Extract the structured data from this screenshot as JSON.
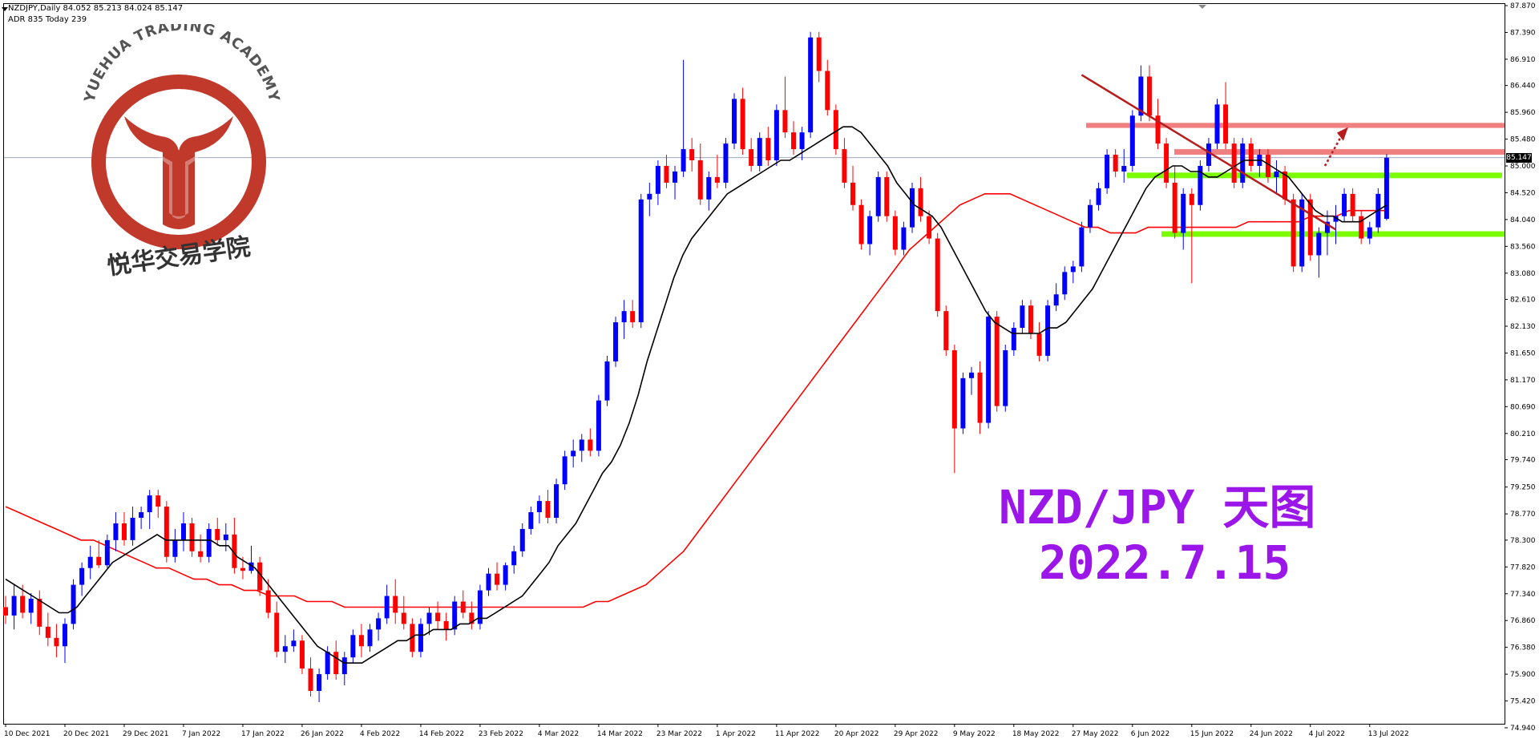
{
  "header": {
    "symbol_line": "NZDJPY,Daily  84.052 85.213 84.024 85.147",
    "info_line": "ADR 835  Today 239"
  },
  "logo": {
    "top_text": "YUEHUA TRADING ACADEMY",
    "chinese_text": "悦华交易学院",
    "color": "#c0392b"
  },
  "overlay_title": "NZD/JPY 天图",
  "overlay_date": "2022.7.15",
  "current_price_label": "85.147",
  "colors": {
    "bull_candle": "#0000ff",
    "bear_candle": "#ff0000",
    "ma_fast": "#000000",
    "ma_slow": "#ff0000",
    "trendline": "#b71c1c",
    "resistance_zone": "#f08080",
    "support_zone": "#7cfc00",
    "overlay_text": "#9b16e8"
  },
  "chart_data": {
    "type": "candlestick",
    "symbol": "NZDJPY",
    "timeframe": "Daily",
    "ohlc_header": {
      "open": 84.052,
      "high": 85.213,
      "low": 84.024,
      "close": 85.147
    },
    "y_ticks": [
      "87.870",
      "87.390",
      "86.910",
      "86.440",
      "85.960",
      "85.480",
      "85.000",
      "84.520",
      "84.040",
      "83.560",
      "83.080",
      "82.610",
      "82.130",
      "81.650",
      "81.170",
      "80.690",
      "80.210",
      "79.740",
      "79.250",
      "78.770",
      "78.300",
      "77.820",
      "77.340",
      "76.860",
      "76.380",
      "75.900",
      "75.420",
      "74.940"
    ],
    "x_labels": [
      "10 Dec 2021",
      "20 Dec 2021",
      "29 Dec 2021",
      "7 Jan 2022",
      "17 Jan 2022",
      "26 Jan 2022",
      "4 Feb 2022",
      "14 Feb 2022",
      "23 Feb 2022",
      "4 Mar 2022",
      "14 Mar 2022",
      "23 Mar 2022",
      "1 Apr 2022",
      "11 Apr 2022",
      "20 Apr 2022",
      "29 Apr 2022",
      "9 May 2022",
      "18 May 2022",
      "27 May 2022",
      "6 Jun 2022",
      "15 Jun 2022",
      "24 Jun 2022",
      "4 Jul 2022",
      "13 Jul 2022"
    ],
    "ylim": [
      74.94,
      87.87
    ],
    "candles": [
      [
        77.1,
        77.3,
        76.8,
        76.95
      ],
      [
        76.95,
        77.5,
        76.7,
        77.3
      ],
      [
        77.3,
        77.5,
        76.9,
        77.0
      ],
      [
        77.0,
        77.35,
        76.8,
        77.25
      ],
      [
        77.25,
        77.4,
        76.6,
        76.75
      ],
      [
        76.75,
        77.0,
        76.4,
        76.55
      ],
      [
        76.55,
        76.8,
        76.2,
        76.4
      ],
      [
        76.4,
        76.9,
        76.1,
        76.8
      ],
      [
        76.8,
        77.6,
        76.7,
        77.5
      ],
      [
        77.5,
        77.9,
        77.3,
        77.8
      ],
      [
        77.8,
        78.2,
        77.6,
        78.0
      ],
      [
        78.0,
        78.3,
        77.8,
        77.85
      ],
      [
        77.85,
        78.4,
        77.8,
        78.3
      ],
      [
        78.3,
        78.8,
        78.1,
        78.6
      ],
      [
        78.6,
        78.8,
        78.2,
        78.3
      ],
      [
        78.3,
        78.9,
        78.2,
        78.7
      ],
      [
        78.7,
        78.9,
        78.5,
        78.8
      ],
      [
        78.8,
        79.2,
        78.5,
        79.1
      ],
      [
        79.1,
        79.2,
        78.7,
        78.9
      ],
      [
        78.9,
        79.0,
        77.9,
        78.0
      ],
      [
        78.0,
        78.5,
        77.9,
        78.3
      ],
      [
        78.3,
        78.8,
        78.1,
        78.6
      ],
      [
        78.6,
        78.7,
        78.0,
        78.1
      ],
      [
        78.1,
        78.4,
        77.9,
        78.0
      ],
      [
        78.0,
        78.6,
        77.9,
        78.5
      ],
      [
        78.5,
        78.7,
        78.2,
        78.3
      ],
      [
        78.3,
        78.6,
        78.1,
        78.4
      ],
      [
        78.4,
        78.7,
        77.7,
        77.8
      ],
      [
        77.8,
        78.0,
        77.6,
        77.75
      ],
      [
        77.75,
        78.2,
        77.7,
        77.9
      ],
      [
        77.9,
        78.0,
        77.3,
        77.4
      ],
      [
        77.4,
        77.6,
        76.9,
        77.0
      ],
      [
        77.0,
        77.2,
        76.2,
        76.3
      ],
      [
        76.3,
        76.6,
        76.1,
        76.4
      ],
      [
        76.4,
        76.7,
        76.3,
        76.5
      ],
      [
        76.5,
        76.6,
        75.9,
        76.0
      ],
      [
        76.0,
        76.2,
        75.5,
        75.6
      ],
      [
        75.6,
        76.0,
        75.4,
        75.9
      ],
      [
        75.9,
        76.4,
        75.8,
        76.3
      ],
      [
        76.3,
        76.5,
        75.8,
        75.9
      ],
      [
        75.9,
        76.3,
        75.7,
        76.2
      ],
      [
        76.2,
        76.7,
        76.1,
        76.6
      ],
      [
        76.6,
        76.8,
        76.2,
        76.4
      ],
      [
        76.4,
        76.8,
        76.3,
        76.7
      ],
      [
        76.7,
        77.0,
        76.5,
        76.9
      ],
      [
        76.9,
        77.5,
        76.8,
        77.3
      ],
      [
        77.3,
        77.6,
        76.8,
        77.0
      ],
      [
        77.0,
        77.3,
        76.7,
        76.8
      ],
      [
        76.8,
        76.9,
        76.2,
        76.3
      ],
      [
        76.3,
        76.9,
        76.2,
        76.8
      ],
      [
        76.8,
        77.1,
        76.6,
        77.0
      ],
      [
        77.0,
        77.2,
        76.7,
        76.85
      ],
      [
        76.85,
        77.0,
        76.5,
        76.7
      ],
      [
        76.7,
        77.3,
        76.6,
        77.2
      ],
      [
        77.2,
        77.4,
        76.9,
        77.0
      ],
      [
        77.0,
        77.2,
        76.7,
        76.8
      ],
      [
        76.8,
        77.5,
        76.7,
        77.4
      ],
      [
        77.4,
        77.8,
        77.3,
        77.7
      ],
      [
        77.7,
        77.9,
        77.4,
        77.5
      ],
      [
        77.5,
        77.9,
        77.4,
        77.85
      ],
      [
        77.85,
        78.2,
        77.7,
        78.1
      ],
      [
        78.1,
        78.6,
        78.0,
        78.5
      ],
      [
        78.5,
        78.9,
        78.4,
        78.8
      ],
      [
        78.8,
        79.1,
        78.6,
        79.0
      ],
      [
        79.0,
        79.2,
        78.6,
        78.7
      ],
      [
        78.7,
        79.4,
        78.6,
        79.3
      ],
      [
        79.3,
        79.9,
        79.2,
        79.8
      ],
      [
        79.8,
        80.1,
        79.6,
        79.9
      ],
      [
        79.9,
        80.2,
        79.7,
        80.1
      ],
      [
        80.1,
        80.3,
        79.8,
        79.9
      ],
      [
        79.9,
        80.9,
        79.8,
        80.8
      ],
      [
        80.8,
        81.6,
        80.7,
        81.5
      ],
      [
        81.5,
        82.3,
        81.4,
        82.2
      ],
      [
        82.2,
        82.6,
        81.9,
        82.4
      ],
      [
        82.4,
        82.6,
        82.1,
        82.2
      ],
      [
        82.2,
        84.5,
        82.1,
        84.4
      ],
      [
        84.4,
        84.7,
        84.1,
        84.5
      ],
      [
        84.5,
        85.1,
        84.3,
        85.0
      ],
      [
        85.0,
        85.2,
        84.6,
        84.7
      ],
      [
        84.7,
        85.0,
        84.4,
        84.9
      ],
      [
        84.9,
        86.9,
        84.8,
        85.3
      ],
      [
        85.3,
        85.5,
        84.9,
        85.1
      ],
      [
        85.1,
        85.4,
        84.3,
        84.4
      ],
      [
        84.4,
        84.9,
        84.2,
        84.8
      ],
      [
        84.8,
        85.2,
        84.6,
        84.7
      ],
      [
        84.7,
        85.5,
        84.6,
        85.4
      ],
      [
        85.4,
        86.3,
        85.3,
        86.2
      ],
      [
        86.2,
        86.4,
        85.2,
        85.3
      ],
      [
        85.3,
        85.5,
        84.9,
        85.0
      ],
      [
        85.0,
        85.6,
        84.9,
        85.5
      ],
      [
        85.5,
        85.7,
        85.0,
        85.1
      ],
      [
        85.1,
        86.1,
        85.0,
        86.0
      ],
      [
        86.0,
        86.6,
        85.5,
        85.6
      ],
      [
        85.6,
        85.8,
        85.2,
        85.3
      ],
      [
        85.3,
        85.7,
        85.1,
        85.6
      ],
      [
        85.6,
        87.4,
        85.5,
        87.3
      ],
      [
        87.3,
        87.4,
        86.5,
        86.7
      ],
      [
        86.7,
        86.9,
        85.9,
        86.0
      ],
      [
        86.0,
        86.1,
        85.2,
        85.3
      ],
      [
        85.3,
        85.5,
        84.6,
        84.7
      ],
      [
        84.7,
        85.0,
        84.2,
        84.3
      ],
      [
        84.3,
        84.4,
        83.5,
        83.6
      ],
      [
        83.6,
        84.2,
        83.4,
        84.1
      ],
      [
        84.1,
        84.9,
        84.0,
        84.8
      ],
      [
        84.8,
        84.9,
        84.0,
        84.1
      ],
      [
        84.1,
        84.2,
        83.4,
        83.5
      ],
      [
        83.5,
        84.0,
        83.4,
        83.9
      ],
      [
        83.9,
        84.7,
        83.8,
        84.6
      ],
      [
        84.6,
        84.8,
        84.0,
        84.1
      ],
      [
        84.1,
        84.2,
        83.6,
        83.7
      ],
      [
        83.7,
        83.8,
        82.3,
        82.4
      ],
      [
        82.4,
        82.5,
        81.6,
        81.7
      ],
      [
        81.7,
        81.8,
        79.5,
        80.3
      ],
      [
        80.3,
        81.3,
        80.2,
        81.2
      ],
      [
        81.2,
        81.4,
        80.9,
        81.3
      ],
      [
        81.3,
        81.5,
        80.2,
        80.4
      ],
      [
        80.4,
        82.4,
        80.3,
        82.3
      ],
      [
        82.3,
        82.4,
        80.6,
        80.7
      ],
      [
        80.7,
        81.8,
        80.6,
        81.7
      ],
      [
        81.7,
        82.2,
        81.6,
        82.1
      ],
      [
        82.1,
        82.6,
        82.0,
        82.5
      ],
      [
        82.5,
        82.6,
        81.9,
        82.0
      ],
      [
        82.0,
        82.2,
        81.5,
        81.6
      ],
      [
        81.6,
        82.6,
        81.5,
        82.5
      ],
      [
        82.5,
        82.9,
        82.4,
        82.7
      ],
      [
        82.7,
        83.2,
        82.6,
        83.1
      ],
      [
        83.1,
        83.3,
        82.9,
        83.2
      ],
      [
        83.2,
        84.0,
        83.1,
        83.9
      ],
      [
        83.9,
        84.4,
        83.8,
        84.3
      ],
      [
        84.3,
        84.7,
        84.2,
        84.6
      ],
      [
        84.6,
        85.3,
        84.5,
        85.2
      ],
      [
        85.2,
        85.3,
        84.8,
        84.9
      ],
      [
        84.9,
        85.3,
        84.7,
        85.0
      ],
      [
        85.0,
        86.0,
        84.9,
        85.9
      ],
      [
        85.9,
        86.8,
        85.8,
        86.6
      ],
      [
        86.6,
        86.8,
        85.8,
        85.9
      ],
      [
        85.9,
        86.2,
        85.3,
        85.4
      ],
      [
        85.4,
        85.5,
        84.6,
        84.7
      ],
      [
        84.7,
        85.0,
        83.7,
        83.8
      ],
      [
        83.8,
        84.6,
        83.5,
        84.5
      ],
      [
        84.5,
        84.6,
        82.9,
        84.3
      ],
      [
        84.3,
        85.1,
        84.2,
        85.0
      ],
      [
        85.0,
        85.5,
        84.9,
        85.4
      ],
      [
        85.4,
        86.2,
        85.3,
        86.1
      ],
      [
        86.1,
        86.5,
        85.3,
        85.4
      ],
      [
        85.4,
        85.5,
        84.6,
        84.7
      ],
      [
        84.7,
        85.5,
        84.6,
        85.4
      ],
      [
        85.4,
        85.5,
        84.9,
        85.0
      ],
      [
        85.0,
        85.3,
        84.8,
        85.2
      ],
      [
        85.2,
        85.3,
        84.7,
        84.8
      ],
      [
        84.8,
        85.1,
        84.5,
        84.9
      ],
      [
        84.9,
        85.0,
        84.3,
        84.4
      ],
      [
        84.4,
        84.5,
        83.1,
        83.2
      ],
      [
        83.2,
        84.5,
        83.1,
        84.4
      ],
      [
        84.4,
        84.5,
        83.3,
        83.4
      ],
      [
        83.4,
        83.9,
        83.0,
        83.8
      ],
      [
        83.8,
        84.2,
        83.4,
        84.0
      ],
      [
        84.0,
        84.3,
        83.6,
        84.1
      ],
      [
        84.1,
        84.6,
        84.0,
        84.5
      ],
      [
        84.5,
        84.6,
        84.0,
        84.1
      ],
      [
        84.1,
        84.2,
        83.6,
        83.7
      ],
      [
        83.7,
        84.0,
        83.6,
        83.9
      ],
      [
        83.9,
        84.6,
        83.8,
        84.5
      ],
      [
        84.052,
        85.213,
        84.024,
        85.147
      ]
    ],
    "series": [
      {
        "name": "",
        "type": "ma",
        "values": [
          77.6,
          77.5,
          77.4,
          77.3,
          77.2,
          77.1,
          77.0,
          77.0,
          77.1,
          77.3,
          77.5,
          77.7,
          77.9,
          78.0,
          78.1,
          78.2,
          78.3,
          78.4,
          78.3,
          78.3,
          78.3,
          78.3,
          78.3,
          78.3,
          78.2,
          78.2,
          78.0,
          77.9,
          77.8,
          77.6,
          77.4,
          77.2,
          77.0,
          76.8,
          76.6,
          76.4,
          76.3,
          76.2,
          76.1,
          76.1,
          76.1,
          76.2,
          76.3,
          76.4,
          76.5,
          76.5,
          76.6,
          76.6,
          76.7,
          76.7,
          76.7,
          76.8,
          76.8,
          76.9,
          76.9,
          77.0,
          77.1,
          77.2,
          77.3,
          77.5,
          77.7,
          77.9,
          78.2,
          78.4,
          78.6,
          78.9,
          79.2,
          79.5,
          79.7,
          80.0,
          80.4,
          80.9,
          81.5,
          82.0,
          82.5,
          83.0,
          83.4,
          83.7,
          83.9,
          84.1,
          84.3,
          84.5,
          84.6,
          84.7,
          84.8,
          84.9,
          85.0,
          85.1,
          85.1,
          85.2,
          85.3,
          85.4,
          85.5,
          85.6,
          85.7,
          85.7,
          85.6,
          85.4,
          85.2,
          85.0,
          84.7,
          84.5,
          84.3,
          84.2,
          84.1,
          83.9,
          83.6,
          83.3,
          83.0,
          82.7,
          82.4,
          82.2,
          82.1,
          82.0,
          82.0,
          82.0,
          82.0,
          82.1,
          82.1,
          82.2,
          82.4,
          82.6,
          82.8,
          83.1,
          83.4,
          83.7,
          84.0,
          84.3,
          84.6,
          84.8,
          84.9,
          85.0,
          85.0,
          84.9,
          84.9,
          84.8,
          84.8,
          84.9,
          85.0,
          85.1,
          85.1,
          85.1,
          85.0,
          84.9,
          84.8,
          84.6,
          84.4,
          84.2,
          84.1,
          84.1,
          84.0,
          84.0,
          84.0,
          84.1,
          84.2,
          84.3
        ]
      },
      {
        "name": "",
        "type": "ma",
        "values": [
          78.9,
          78.8,
          78.7,
          78.6,
          78.5,
          78.4,
          78.3,
          78.3,
          78.2,
          78.1,
          78.0,
          77.9,
          77.8,
          77.8,
          77.7,
          77.6,
          77.6,
          77.5,
          77.5,
          77.4,
          77.4,
          77.3,
          77.3,
          77.3,
          77.2,
          77.2,
          77.2,
          77.1,
          77.1,
          77.1,
          77.1,
          77.1,
          77.1,
          77.1,
          77.1,
          77.1,
          77.1,
          77.1,
          77.1,
          77.1,
          77.1,
          77.1,
          77.1,
          77.1,
          77.1,
          77.1,
          77.1,
          77.2,
          77.2,
          77.3,
          77.4,
          77.5,
          77.7,
          77.9,
          78.1,
          78.4,
          78.7,
          79.0,
          79.3,
          79.6,
          79.9,
          80.2,
          80.5,
          80.8,
          81.1,
          81.4,
          81.7,
          82.0,
          82.3,
          82.6,
          82.9,
          83.2,
          83.5,
          83.7,
          83.9,
          84.1,
          84.3,
          84.4,
          84.5,
          84.5,
          84.5,
          84.4,
          84.3,
          84.2,
          84.1,
          84.0,
          83.9,
          83.9,
          83.8,
          83.8,
          83.8,
          83.9,
          83.9,
          83.9,
          83.9,
          83.9,
          83.9,
          83.9,
          83.9,
          84.0,
          84.0,
          84.0,
          84.0,
          84.0,
          84.1,
          84.1,
          84.1,
          84.2,
          84.2,
          84.2,
          84.2
        ]
      }
    ],
    "current_price": 85.147,
    "annotations": {
      "resistance_zones": [
        [
          85.68,
          85.77
        ],
        [
          85.2,
          85.3
        ]
      ],
      "support_zones": [
        [
          84.78,
          84.88
        ],
        [
          83.73,
          83.83
        ]
      ],
      "trendline": {
        "from_index": 127,
        "from_price": 86.63,
        "to_index": 157,
        "to_price": 83.86
      },
      "projection_arrow": {
        "from_price": 85.0,
        "to_price": 85.55
      }
    }
  }
}
